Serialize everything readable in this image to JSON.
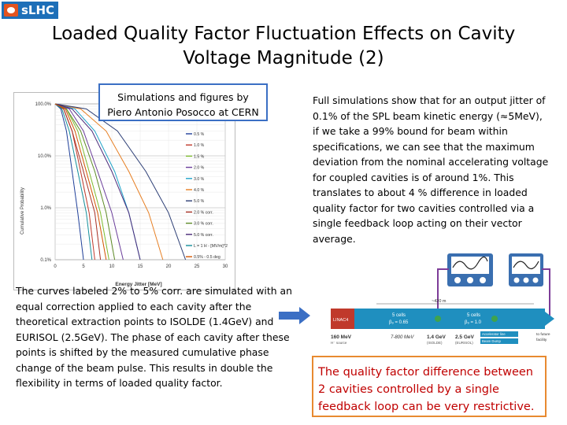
{
  "logo": {
    "text": "sLHC"
  },
  "title": "Loaded Quality Factor Fluctuation Effects on Cavity Voltage Magnitude (2)",
  "credit": {
    "line1": "Simulations and figures by",
    "line2": "Piero Antonio Posocco at CERN"
  },
  "right_paragraph": "Full simulations show that for an output jitter of 0.1% of the SPL beam kinetic energy (≈5MeV), if we take a 99% bound for beam within specifications, we can see that the maximum deviation from the nominal accelerating voltage for coupled cavities is of around 1%. This translates to about 4 % difference in loaded quality factor for two cavities controlled via a single feedback loop acting on their vector average.",
  "left_paragraph": "The curves labeled 2% to 5% corr. are simulated with an equal correction applied to each cavity after the theoretical extraction points to ISOLDE (1.4GeV) and EURISOL (2.5GeV). The phase of each cavity after these points is shifted by the measured cumulative phase change of the beam pulse. This results in double the flexibility in terms of loaded quality factor.",
  "warning": "The quality factor difference between 2 cavities controlled by a single feedback loop can be very restrictive.",
  "colors": {
    "accent_blue": "#3b6fc4",
    "warning_red": "#c00000",
    "box_orange": "#e88a30",
    "linac_blue": "#1f8fbf"
  },
  "chart_data": {
    "type": "line",
    "title": "",
    "xlabel": "Energy Jitter [MeV]",
    "ylabel": "Cumulative Probability",
    "x_ticks": [
      "0",
      "5",
      "10",
      "15",
      "20",
      "25",
      "30"
    ],
    "y_ticks": [
      "100.0%",
      "10.0%",
      "1.0%",
      "0.1%"
    ],
    "xlim": [
      0,
      30
    ],
    "ylim_log": [
      0.1,
      100
    ],
    "legend_position": "right",
    "series": [
      {
        "name": "0.5 %",
        "color": "#1f3f99",
        "x": [
          0,
          1,
          2,
          3,
          4,
          5
        ],
        "y": [
          100,
          80,
          30,
          5,
          0.8,
          0.1
        ]
      },
      {
        "name": "1.0 %",
        "color": "#c0392b",
        "x": [
          0,
          1.5,
          3,
          4.5,
          6,
          7
        ],
        "y": [
          100,
          80,
          30,
          5,
          0.8,
          0.1
        ]
      },
      {
        "name": "1.5 %",
        "color": "#7dbb2f",
        "x": [
          0,
          2,
          4,
          6,
          8,
          9.5
        ],
        "y": [
          100,
          80,
          30,
          5,
          0.8,
          0.1
        ]
      },
      {
        "name": "2.0 %",
        "color": "#6a3d9a",
        "x": [
          0,
          2.5,
          5,
          7.5,
          10,
          12
        ],
        "y": [
          100,
          80,
          30,
          5,
          0.8,
          0.1
        ]
      },
      {
        "name": "3.0 %",
        "color": "#1fa3c9",
        "x": [
          0,
          3.5,
          7,
          10.5,
          13,
          15
        ],
        "y": [
          100,
          80,
          30,
          5,
          0.8,
          0.1
        ]
      },
      {
        "name": "4.0 %",
        "color": "#e67e22",
        "x": [
          0,
          4.5,
          9,
          13,
          16.5,
          19
        ],
        "y": [
          100,
          80,
          30,
          5,
          0.8,
          0.1
        ]
      },
      {
        "name": "5.0 %",
        "color": "#2c3e75",
        "x": [
          0,
          5.5,
          11,
          16,
          20,
          23
        ],
        "y": [
          100,
          80,
          30,
          5,
          0.8,
          0.1
        ]
      },
      {
        "name": "2.0 % corr.",
        "color": "#a93226",
        "x": [
          0,
          1.5,
          3,
          5,
          7,
          8
        ],
        "y": [
          100,
          80,
          30,
          5,
          0.8,
          0.1
        ]
      },
      {
        "name": "3.0 % corr.",
        "color": "#5d8a27",
        "x": [
          0,
          2,
          4.5,
          7,
          9,
          10.5
        ],
        "y": [
          100,
          80,
          30,
          5,
          0.8,
          0.1
        ]
      },
      {
        "name": "5.0 % corr.",
        "color": "#4b2a7a",
        "x": [
          0,
          3,
          6.5,
          10,
          13,
          15
        ],
        "y": [
          100,
          80,
          30,
          5,
          0.8,
          0.1
        ]
      },
      {
        "name": "L = 1 H - [MV/m]^2",
        "color": "#148f9b",
        "x": [
          0,
          1.2,
          2.5,
          4,
          5.5,
          6.5
        ],
        "y": [
          100,
          80,
          30,
          5,
          0.8,
          0.1
        ]
      },
      {
        "name": "0.5% - 0.5 deg",
        "color": "#d35400",
        "x": [
          0,
          1.8,
          3.5,
          5.5,
          7.5,
          9
        ],
        "y": [
          100,
          80,
          30,
          5,
          0.8,
          0.1
        ]
      }
    ]
  },
  "diagram": {
    "linac_label": "LINAC4",
    "section1_line1": "5 cells",
    "section1_line2": "β₉ = 0.65",
    "section2_line1": "5 cells",
    "section2_line2": "β₉ = 1.0",
    "length_label": "~420 m",
    "energy1": "160 MeV",
    "energy1_sub": "H⁻ source",
    "energy2": "7-800 MeV",
    "energy3": "1.4 GeV",
    "energy3_sub": "(ISOLDE)",
    "energy4": "2.5 GeV",
    "energy4_sub": "(EURISOL)",
    "legend1": "Accelerator line",
    "legend2": "Beam Dump",
    "end_label1": "to future",
    "end_label2": "facility"
  }
}
